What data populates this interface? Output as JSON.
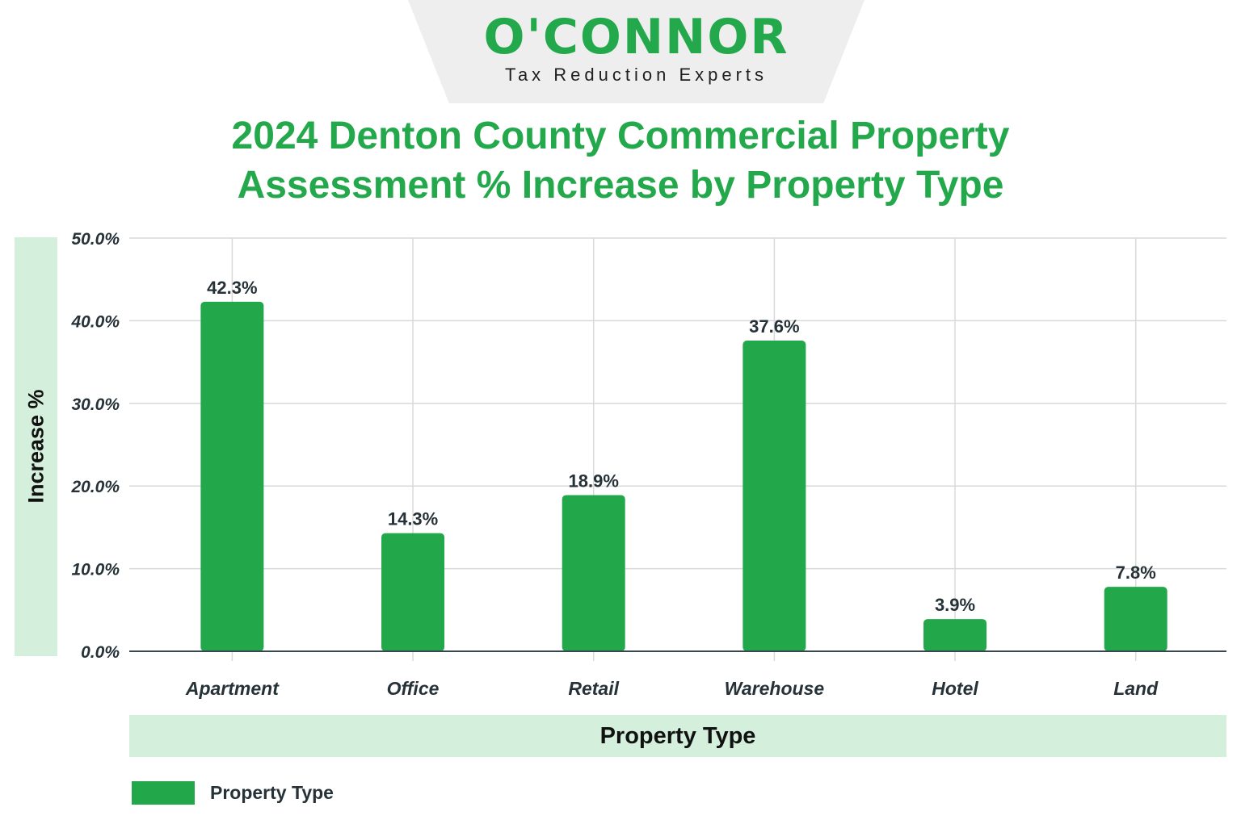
{
  "brand": {
    "name": "O'CONNOR",
    "tagline": "Tax Reduction Experts"
  },
  "chart_data": {
    "type": "bar",
    "title": "2024 Denton County Commercial Property Assessment % Increase by Property Type",
    "xlabel": "Property Type",
    "ylabel": "Increase %",
    "categories": [
      "Apartment",
      "Office",
      "Retail",
      "Warehouse",
      "Hotel",
      "Land"
    ],
    "series": [
      {
        "name": "Property Type",
        "values": [
          42.3,
          14.3,
          18.9,
          37.6,
          3.9,
          7.8
        ],
        "data_labels": [
          "42.3%",
          "14.3%",
          "18.9%",
          "37.6%",
          "3.9%",
          "7.8%"
        ]
      }
    ],
    "ylim": [
      0,
      50
    ],
    "yticks": [
      0,
      10,
      20,
      30,
      40,
      50
    ],
    "ytick_labels": [
      "0.0%",
      "10.0%",
      "20.0%",
      "30.0%",
      "40.0%",
      "50.0%"
    ],
    "grid": true,
    "legend_position": "bottom-left",
    "colors": {
      "bar": "#22a84a",
      "title": "#23a84b",
      "band": "#d4efdb",
      "grid": "#d9d9d9",
      "axis": "#37474f",
      "text": "#263238"
    }
  }
}
